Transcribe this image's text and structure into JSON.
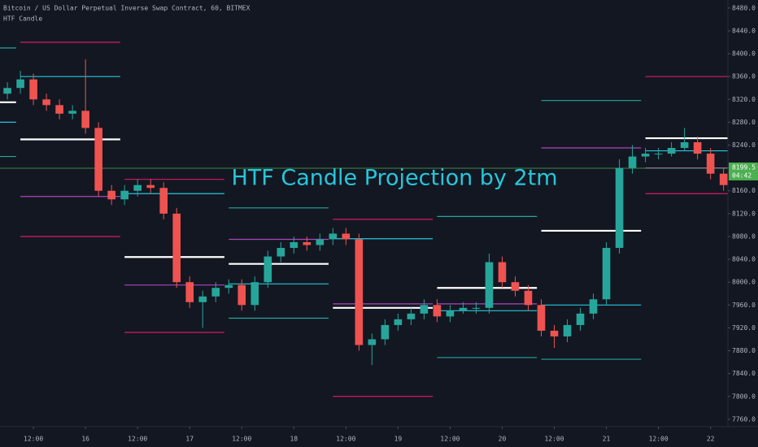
{
  "chart_data": {
    "type": "candlestick",
    "title": "Bitcoin / US Dollar Perpetual Inverse Swap Contract, 60, BITMEX",
    "subtitle": "HTF Candle",
    "annotation": "HTF Candle Projection by 2tm",
    "up_color": "#26a69a",
    "down_color": "#ef5350",
    "x": [
      -18,
      -15,
      -12,
      -9,
      -6,
      -3,
      0,
      3,
      6,
      9,
      12,
      15,
      18,
      21,
      24,
      27,
      30,
      33,
      36,
      39,
      42,
      45,
      48,
      51,
      54,
      57,
      60,
      63,
      66,
      69,
      72,
      75,
      78,
      81,
      84,
      87,
      90,
      93,
      96,
      99,
      102,
      105,
      108,
      111,
      114,
      117,
      120,
      123,
      126,
      129,
      132,
      135,
      138,
      141,
      144,
      147
    ],
    "open": [
      8330,
      8340,
      8355,
      8320,
      8310,
      8295,
      8300,
      8270,
      8160,
      8145,
      8160,
      8170,
      8165,
      8120,
      8000,
      7965,
      7975,
      7990,
      7995,
      7960,
      8000,
      8045,
      8060,
      8070,
      8065,
      8075,
      8085,
      8075,
      7890,
      7900,
      7925,
      7935,
      7945,
      7960,
      7940,
      7950,
      7955,
      7955,
      8035,
      8000,
      7985,
      7960,
      7915,
      7905,
      7925,
      7945,
      7970,
      8060,
      8200,
      8220,
      8225,
      8225,
      8235,
      8245,
      8225,
      8190
    ],
    "high": [
      8350,
      8370,
      8365,
      8330,
      8320,
      8310,
      8390,
      8280,
      8170,
      8170,
      8180,
      8180,
      8175,
      8130,
      8010,
      7985,
      8000,
      8005,
      8005,
      8010,
      8055,
      8070,
      8080,
      8080,
      8085,
      8095,
      8095,
      8085,
      7910,
      7935,
      7945,
      7955,
      7970,
      7970,
      7960,
      7965,
      7965,
      8050,
      8045,
      8010,
      7995,
      7970,
      7925,
      7935,
      7955,
      7980,
      8070,
      8215,
      8240,
      8235,
      8235,
      8245,
      8270,
      8255,
      8235,
      8200
    ],
    "low": [
      8320,
      8330,
      8310,
      8300,
      8285,
      8285,
      8260,
      8150,
      8135,
      8135,
      8150,
      8155,
      8110,
      7990,
      7955,
      7920,
      7965,
      7980,
      7950,
      7950,
      7990,
      8035,
      8050,
      8055,
      8055,
      8065,
      8065,
      7880,
      7855,
      7890,
      7915,
      7925,
      7935,
      7930,
      7930,
      7945,
      7945,
      7945,
      7990,
      7975,
      7950,
      7905,
      7885,
      7895,
      7915,
      7935,
      7960,
      8050,
      8190,
      8210,
      8215,
      8220,
      8230,
      8215,
      8180,
      8160
    ],
    "close": [
      8340,
      8355,
      8320,
      8310,
      8295,
      8300,
      8270,
      8160,
      8145,
      8160,
      8170,
      8165,
      8120,
      8000,
      7965,
      7975,
      7990,
      7995,
      7960,
      8000,
      8045,
      8060,
      8070,
      8065,
      8075,
      8085,
      8075,
      7890,
      7900,
      7925,
      7935,
      7945,
      7960,
      7940,
      7950,
      7955,
      7955,
      8035,
      8000,
      7985,
      7960,
      7915,
      7905,
      7925,
      7945,
      7970,
      8060,
      8200,
      8220,
      8225,
      8225,
      8235,
      8245,
      8225,
      8190,
      8170
    ],
    "projections": [
      {
        "x": [
          -20,
          -16
        ],
        "lines": [
          {
            "value": 8410,
            "color": "#26a69a"
          },
          {
            "value": 8315,
            "color": "#ffffff"
          },
          {
            "value": 8280,
            "color": "#26c6da"
          },
          {
            "value": 8220,
            "color": "#26a69a"
          }
        ]
      },
      {
        "x": [
          -15,
          8
        ],
        "lines": [
          {
            "value": 8420,
            "color": "#d81b60"
          },
          {
            "value": 8360,
            "color": "#26c6da"
          },
          {
            "value": 8250,
            "color": "#ffffff"
          },
          {
            "value": 8150,
            "color": "#ab47bc"
          },
          {
            "value": 8080,
            "color": "#d81b60"
          }
        ]
      },
      {
        "x": [
          9,
          32
        ],
        "lines": [
          {
            "value": 8180,
            "color": "#d81b60"
          },
          {
            "value": 8155,
            "color": "#26c6da"
          },
          {
            "value": 8044,
            "color": "#ffffff"
          },
          {
            "value": 7995,
            "color": "#ab47bc"
          },
          {
            "value": 7912,
            "color": "#d81b60"
          }
        ]
      },
      {
        "x": [
          33,
          56
        ],
        "lines": [
          {
            "value": 8130,
            "color": "#26a69a"
          },
          {
            "value": 8075,
            "color": "#ab47bc"
          },
          {
            "value": 8032,
            "color": "#ffffff"
          },
          {
            "value": 7997,
            "color": "#26c6da"
          },
          {
            "value": 7937,
            "color": "#26a69a"
          }
        ]
      },
      {
        "x": [
          57,
          80
        ],
        "lines": [
          {
            "value": 8110,
            "color": "#d81b60"
          },
          {
            "value": 8076,
            "color": "#26c6da"
          },
          {
            "value": 7962,
            "color": "#ab47bc"
          },
          {
            "value": 7955,
            "color": "#ffffff"
          },
          {
            "value": 7800,
            "color": "#d81b60"
          }
        ]
      },
      {
        "x": [
          81,
          104
        ],
        "lines": [
          {
            "value": 8115,
            "color": "#26a69a"
          },
          {
            "value": 7990,
            "color": "#ffffff"
          },
          {
            "value": 7962,
            "color": "#ab47bc"
          },
          {
            "value": 7950,
            "color": "#26c6da"
          },
          {
            "value": 7868,
            "color": "#26a69a"
          }
        ]
      },
      {
        "x": [
          105,
          128
        ],
        "lines": [
          {
            "value": 8318,
            "color": "#26a69a"
          },
          {
            "value": 8235,
            "color": "#ab47bc"
          },
          {
            "value": 8090,
            "color": "#ffffff"
          },
          {
            "value": 7960,
            "color": "#26c6da"
          },
          {
            "value": 7865,
            "color": "#26a69a"
          }
        ]
      },
      {
        "x": [
          129,
          148
        ],
        "lines": [
          {
            "value": 8360,
            "color": "#d81b60"
          },
          {
            "value": 8252,
            "color": "#ffffff"
          },
          {
            "value": 8230,
            "color": "#26c6da"
          },
          {
            "value": 8200,
            "color": "#ab47bc"
          },
          {
            "value": 8155,
            "color": "#d81b60"
          }
        ]
      }
    ],
    "last_price": 8199.5,
    "last_price_color": "#4caf50",
    "countdown": "04:42",
    "xlim": [
      -19.7,
      148
    ],
    "xticks": [
      {
        "value": -12,
        "label": "12:00"
      },
      {
        "value": 0,
        "label": "16"
      },
      {
        "value": 12,
        "label": "12:00"
      },
      {
        "value": 24,
        "label": "17"
      },
      {
        "value": 36,
        "label": "12:00"
      },
      {
        "value": 48,
        "label": "18"
      },
      {
        "value": 60,
        "label": "12:00"
      },
      {
        "value": 72,
        "label": "19"
      },
      {
        "value": 84,
        "label": "12:00"
      },
      {
        "value": 96,
        "label": "20"
      },
      {
        "value": 108,
        "label": "12:00"
      },
      {
        "value": 120,
        "label": "21"
      },
      {
        "value": 132,
        "label": "12:00"
      },
      {
        "value": 144,
        "label": "22"
      }
    ],
    "ylim": [
      7747,
      8494
    ],
    "yticks": [
      {
        "value": 7760,
        "label": "7760.0"
      },
      {
        "value": 7800,
        "label": "7800.0"
      },
      {
        "value": 7840,
        "label": "7840.0"
      },
      {
        "value": 7880,
        "label": "7880.0"
      },
      {
        "value": 7920,
        "label": "7920.0"
      },
      {
        "value": 7960,
        "label": "7960.0"
      },
      {
        "value": 8000,
        "label": "8000.0"
      },
      {
        "value": 8040,
        "label": "8040.0"
      },
      {
        "value": 8080,
        "label": "8080.0"
      },
      {
        "value": 8120,
        "label": "8120.0"
      },
      {
        "value": 8160,
        "label": "8160.0"
      },
      {
        "value": 8200,
        "label": "8200.0"
      },
      {
        "value": 8240,
        "label": "8240.0"
      },
      {
        "value": 8280,
        "label": "8280.0"
      },
      {
        "value": 8320,
        "label": "8320.0"
      },
      {
        "value": 8360,
        "label": "8360.0"
      },
      {
        "value": 8400,
        "label": "8400.0"
      },
      {
        "value": 8440,
        "label": "8440.0"
      },
      {
        "value": 8480,
        "label": "8480.0"
      }
    ]
  }
}
